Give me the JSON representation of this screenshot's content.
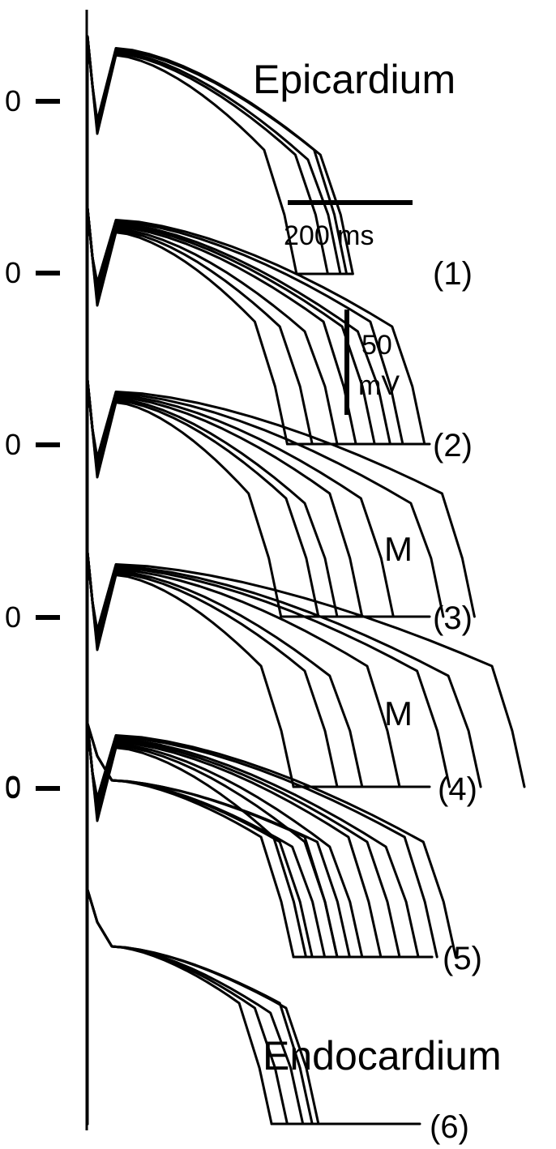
{
  "figure": {
    "zero_label": "0",
    "region_top": "Epicardium",
    "region_bottom": "Endocardium",
    "region_m": "M",
    "time_scale_label": "200 ms",
    "voltage_scale_value": "50",
    "voltage_scale_unit": "mV",
    "traces": [
      {
        "index_label": "",
        "zero_label_shown": true,
        "region": "Epicardium",
        "apd_ms": [
          335,
          385,
          405,
          415,
          425
        ],
        "notch": true
      },
      {
        "index_label": "(1)",
        "zero_label_shown": true,
        "region": "",
        "apd_ms": [
          320,
          360,
          400,
          430,
          460,
          485,
          505,
          540
        ],
        "notch": true
      },
      {
        "index_label": "(2)",
        "zero_label_shown": true,
        "region": "",
        "apd_ms": [
          310,
          370,
          400,
          440,
          490,
          570,
          620
        ],
        "notch": true
      },
      {
        "index_label": "(3)",
        "zero_label_shown": true,
        "region": "M",
        "apd_ms": [
          330,
          400,
          440,
          500,
          580,
          630,
          700
        ],
        "notch": true
      },
      {
        "index_label": "(4)",
        "zero_label_shown": true,
        "region": "",
        "apd_ms": [
          350,
          400,
          440,
          470,
          500,
          530,
          560,
          590
        ],
        "notch": true
      },
      {
        "index_label": "(5)",
        "zero_label_shown": true,
        "region": "",
        "apd_ms": [
          330,
          360,
          380,
          400,
          420
        ],
        "notch": false
      },
      {
        "index_label": "(6)",
        "zero_label_shown": false,
        "region": "Endocardium",
        "apd_ms": [
          295,
          320,
          345,
          360,
          370
        ],
        "notch": false
      }
    ]
  }
}
